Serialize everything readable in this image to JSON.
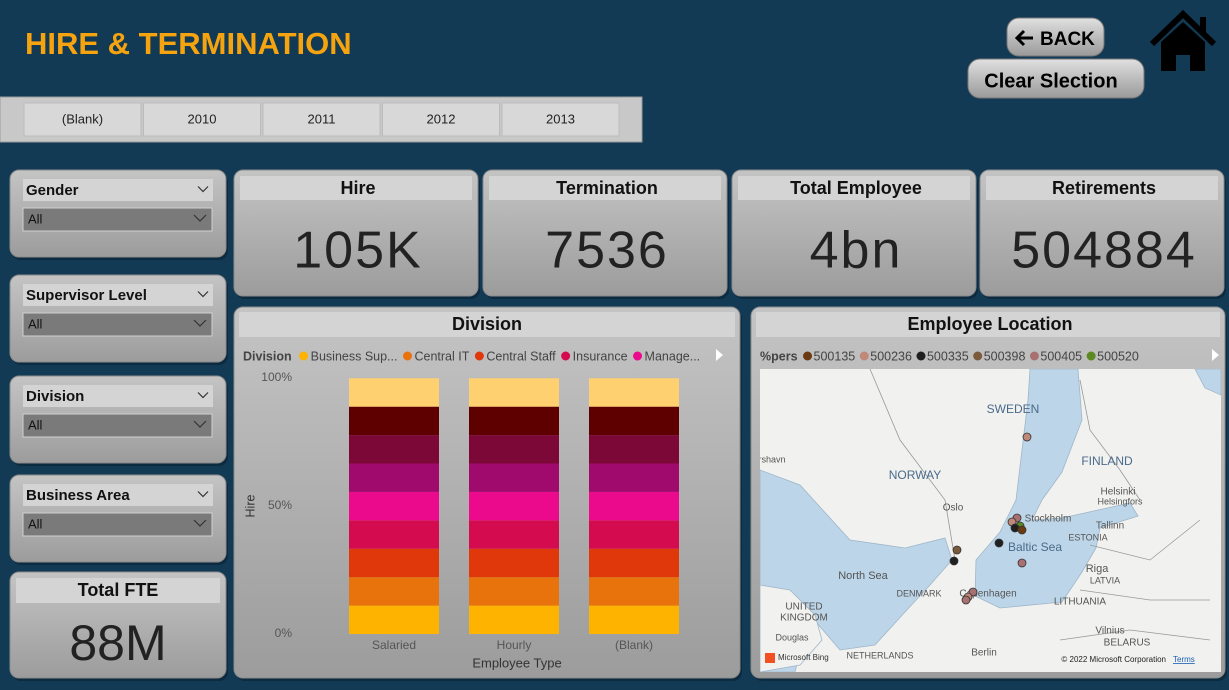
{
  "header": {
    "title": "HIRE & TERMINATION",
    "back_button": "BACK",
    "clear_button": "Clear Slection"
  },
  "year_slicer": [
    "(Blank)",
    "2010",
    "2011",
    "2012",
    "2013"
  ],
  "filters": [
    {
      "label": "Gender",
      "selected": "All"
    },
    {
      "label": "Supervisor Level",
      "selected": "All"
    },
    {
      "label": "Division",
      "selected": "All"
    },
    {
      "label": "Business Area",
      "selected": "All"
    }
  ],
  "total_fte": {
    "label": "Total FTE",
    "value": "88M"
  },
  "kpis": [
    {
      "label": "Hire",
      "value": "105K"
    },
    {
      "label": "Termination",
      "value": "7536"
    },
    {
      "label": "Total Employee",
      "value": "4bn"
    },
    {
      "label": "Retirements",
      "value": "504884"
    }
  ],
  "chart_data": {
    "type": "bar",
    "stacked": true,
    "title": "Division",
    "legend_title": "Division",
    "x_label": "Employee Type",
    "y_label": "Hire",
    "categories": [
      "Salaried",
      "Hourly",
      "(Blank)"
    ],
    "series": [
      {
        "name": "Business Sup...",
        "color": "#fdb300",
        "values": [
          11.1,
          11.1,
          11.1
        ]
      },
      {
        "name": "Central IT",
        "color": "#e8730c",
        "values": [
          11.1,
          11.1,
          11.1
        ]
      },
      {
        "name": "Central Staff",
        "color": "#e0380a",
        "values": [
          11.1,
          11.1,
          11.1
        ]
      },
      {
        "name": "Insurance",
        "color": "#d40c4f",
        "values": [
          11.1,
          11.1,
          11.1
        ]
      },
      {
        "name": "Manage...",
        "color": "#ec0a8c",
        "values": [
          11.1,
          11.1,
          11.1
        ]
      },
      {
        "name": null,
        "color": "#a00a6c",
        "values": [
          11.1,
          11.1,
          11.1
        ]
      },
      {
        "name": null,
        "color": "#7c0838",
        "values": [
          11.1,
          11.1,
          11.1
        ]
      },
      {
        "name": null,
        "color": "#5e0000",
        "values": [
          11.1,
          11.1,
          11.1
        ]
      },
      {
        "name": null,
        "color": "#ffd070",
        "values": [
          11.1,
          11.1,
          11.1
        ]
      }
    ],
    "ylim": [
      0,
      100
    ],
    "yticks": [
      {
        "value": 0,
        "label": "0%"
      },
      {
        "value": 50,
        "label": "50%"
      },
      {
        "value": 100,
        "label": "100%"
      }
    ]
  },
  "map": {
    "title": "Employee Location",
    "legend_title": "%pers",
    "legend": [
      {
        "name": "500135",
        "color": "#6b3a10"
      },
      {
        "name": "500236",
        "color": "#c08878"
      },
      {
        "name": "500335",
        "color": "#202020"
      },
      {
        "name": "500398",
        "color": "#7a5a3a"
      },
      {
        "name": "500405",
        "color": "#a87070"
      },
      {
        "name": "500520",
        "color": "#5a8a20"
      }
    ],
    "labels": [
      "SWEDEN",
      "NORWAY",
      "FINLAND",
      "Oslo",
      "Stockholm",
      "Helsinki",
      "Helsingfors",
      "Tallinn",
      "ESTONIA",
      "Baltic Sea",
      "North Sea",
      "DENMARK",
      "Copenhagen",
      "Riga",
      "LATVIA",
      "LITHUANIA",
      "UNITED",
      "KINGDOM",
      "Douglas",
      "Vilnius",
      "BELARUS",
      "Berlin",
      "NETHERLANDS",
      "rshavn"
    ],
    "bing": "Microsoft Bing",
    "copyright": "© 2022 Microsoft Corporation",
    "terms": "Terms"
  }
}
